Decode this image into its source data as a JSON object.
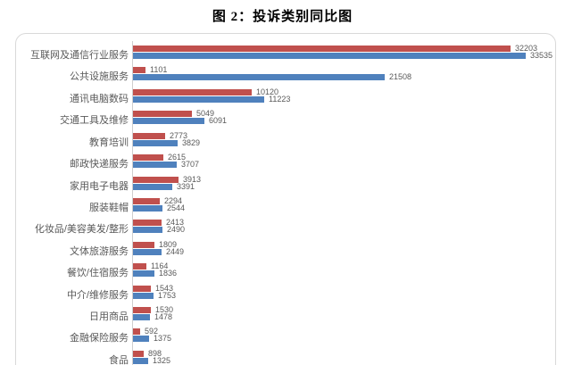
{
  "title": "图 2：投诉类别同比图",
  "chart_data": {
    "type": "bar",
    "orientation": "horizontal",
    "title": "图 2：投诉类别同比图",
    "categories": [
      "互联网及通信行业服务",
      "公共设施服务",
      "通讯电脑数码",
      "交通工具及维修",
      "教育培训",
      "邮政快递服务",
      "家用电子电器",
      "服装鞋帽",
      "化妆品/美容美发/整形",
      "文体旅游服务",
      "餐饮/住宿服务",
      "中介/维修服务",
      "日用商品",
      "金融保险服务",
      "食品"
    ],
    "series": [
      {
        "name": "red",
        "color": "#c0504d",
        "values": [
          32203,
          1101,
          10120,
          5049,
          2773,
          2615,
          3913,
          2294,
          2413,
          1809,
          1164,
          1543,
          1530,
          592,
          898
        ]
      },
      {
        "name": "blue",
        "color": "#4f81bd",
        "values": [
          33535,
          21508,
          11223,
          6091,
          3829,
          3707,
          3391,
          2544,
          2490,
          2449,
          1836,
          1753,
          1478,
          1375,
          1325
        ]
      }
    ],
    "value_labels": true,
    "legend_position": "none",
    "grid": false,
    "xlim": [
      0,
      35000
    ]
  },
  "style": {
    "bar_color_red": "#c0504d",
    "bar_color_blue": "#4f81bd",
    "label_text_color": "#595959",
    "border_color": "#d9d9d9",
    "axis_line_color": "#cfcfcf"
  }
}
